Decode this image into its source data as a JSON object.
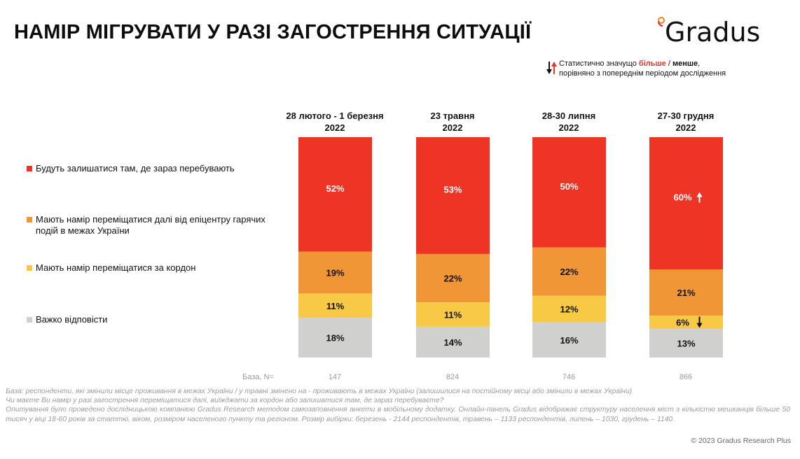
{
  "title": "НАМІР МІГРУВАТИ У РАЗІ ЗАГОСТРЕННЯ СИТУАЦІЇ",
  "logo": {
    "text": "Gradus",
    "icon": "gradus-ring-icon"
  },
  "significance_note": {
    "prefix": "Статистично значущо ",
    "more": "більше",
    "sep": " / ",
    "less": "менше",
    "suffix": ",",
    "line2": "порівняно з попереднім періодом дослідження",
    "icon": "up-down-arrows-icon"
  },
  "colors": {
    "stay": "#ee3424",
    "move_inside": "#f09637",
    "abroad": "#f7c944",
    "hard_to_say": "#d0d0ce",
    "significant_more": "#e8352a",
    "significant_less": "#111111"
  },
  "chart_data": {
    "type": "bar",
    "stacked": true,
    "title": "НАМІР МІГРУВАТИ У РАЗІ ЗАГОСТРЕННЯ СИТУАЦІЇ",
    "categories": [
      {
        "line1": "28 лютого - 1 березня",
        "line2": "2022"
      },
      {
        "line1": "23 травня",
        "line2": "2022"
      },
      {
        "line1": "28-30 липня",
        "line2": "2022"
      },
      {
        "line1": "27-30 грудня",
        "line2": "2022"
      }
    ],
    "series": [
      {
        "key": "stay",
        "name": "Будуть залишатися там, де зараз перебувають",
        "values": [
          52,
          53,
          50,
          60
        ],
        "label_color": "#ffffff",
        "significance": [
          null,
          null,
          null,
          "up"
        ]
      },
      {
        "key": "move_inside",
        "name": "Мають намір переміщатися далі від епіцентру гарячих подій в межах України",
        "values": [
          19,
          22,
          22,
          21
        ],
        "label_color": "#111111",
        "significance": [
          null,
          null,
          null,
          null
        ]
      },
      {
        "key": "abroad",
        "name": "Мають намір переміщатися за кордон",
        "values": [
          11,
          11,
          12,
          6
        ],
        "label_color": "#111111",
        "significance": [
          null,
          null,
          null,
          "down"
        ]
      },
      {
        "key": "hard_to_say",
        "name": "Важко відповісти",
        "values": [
          18,
          14,
          16,
          13
        ],
        "label_color": "#111111",
        "significance": [
          null,
          null,
          null,
          null
        ]
      }
    ],
    "value_suffix": "%",
    "ylim": [
      0,
      100
    ],
    "xlabel": "",
    "ylabel": "",
    "grid": false,
    "legend_position": "left",
    "base": {
      "label": "База, N=",
      "values": [
        147,
        824,
        746,
        866
      ]
    }
  },
  "footnote": {
    "line1": "База:  респонденти, які змінили місце проживання в межах України / у травні змінено на - проживають в межах України (залишилися на постійному місці або змінили в межах України)",
    "line2": "Чи маєте Ви намір у разі загострення переміщатися далі, виїжджати за кордон або залишатися там, де зараз перебуваєте?",
    "line3": "Опитування було проведено дослідницькою компанією Gradus Research методом самозаповнення анкети в мобільному додатку. Онлайн-панель Gradus відображає структуру населення міст з кількістю мешканців більше 50 тисяч у віці 18-60 років за статтю, віком, розміром населеного пункту та регіоном. Розмір вибірки: березень - 2144 респондентів, травень – 1133 респондентів, липень – 1030, грудень – 1140."
  },
  "copyright": "© 2023 Gradus Research Plus"
}
